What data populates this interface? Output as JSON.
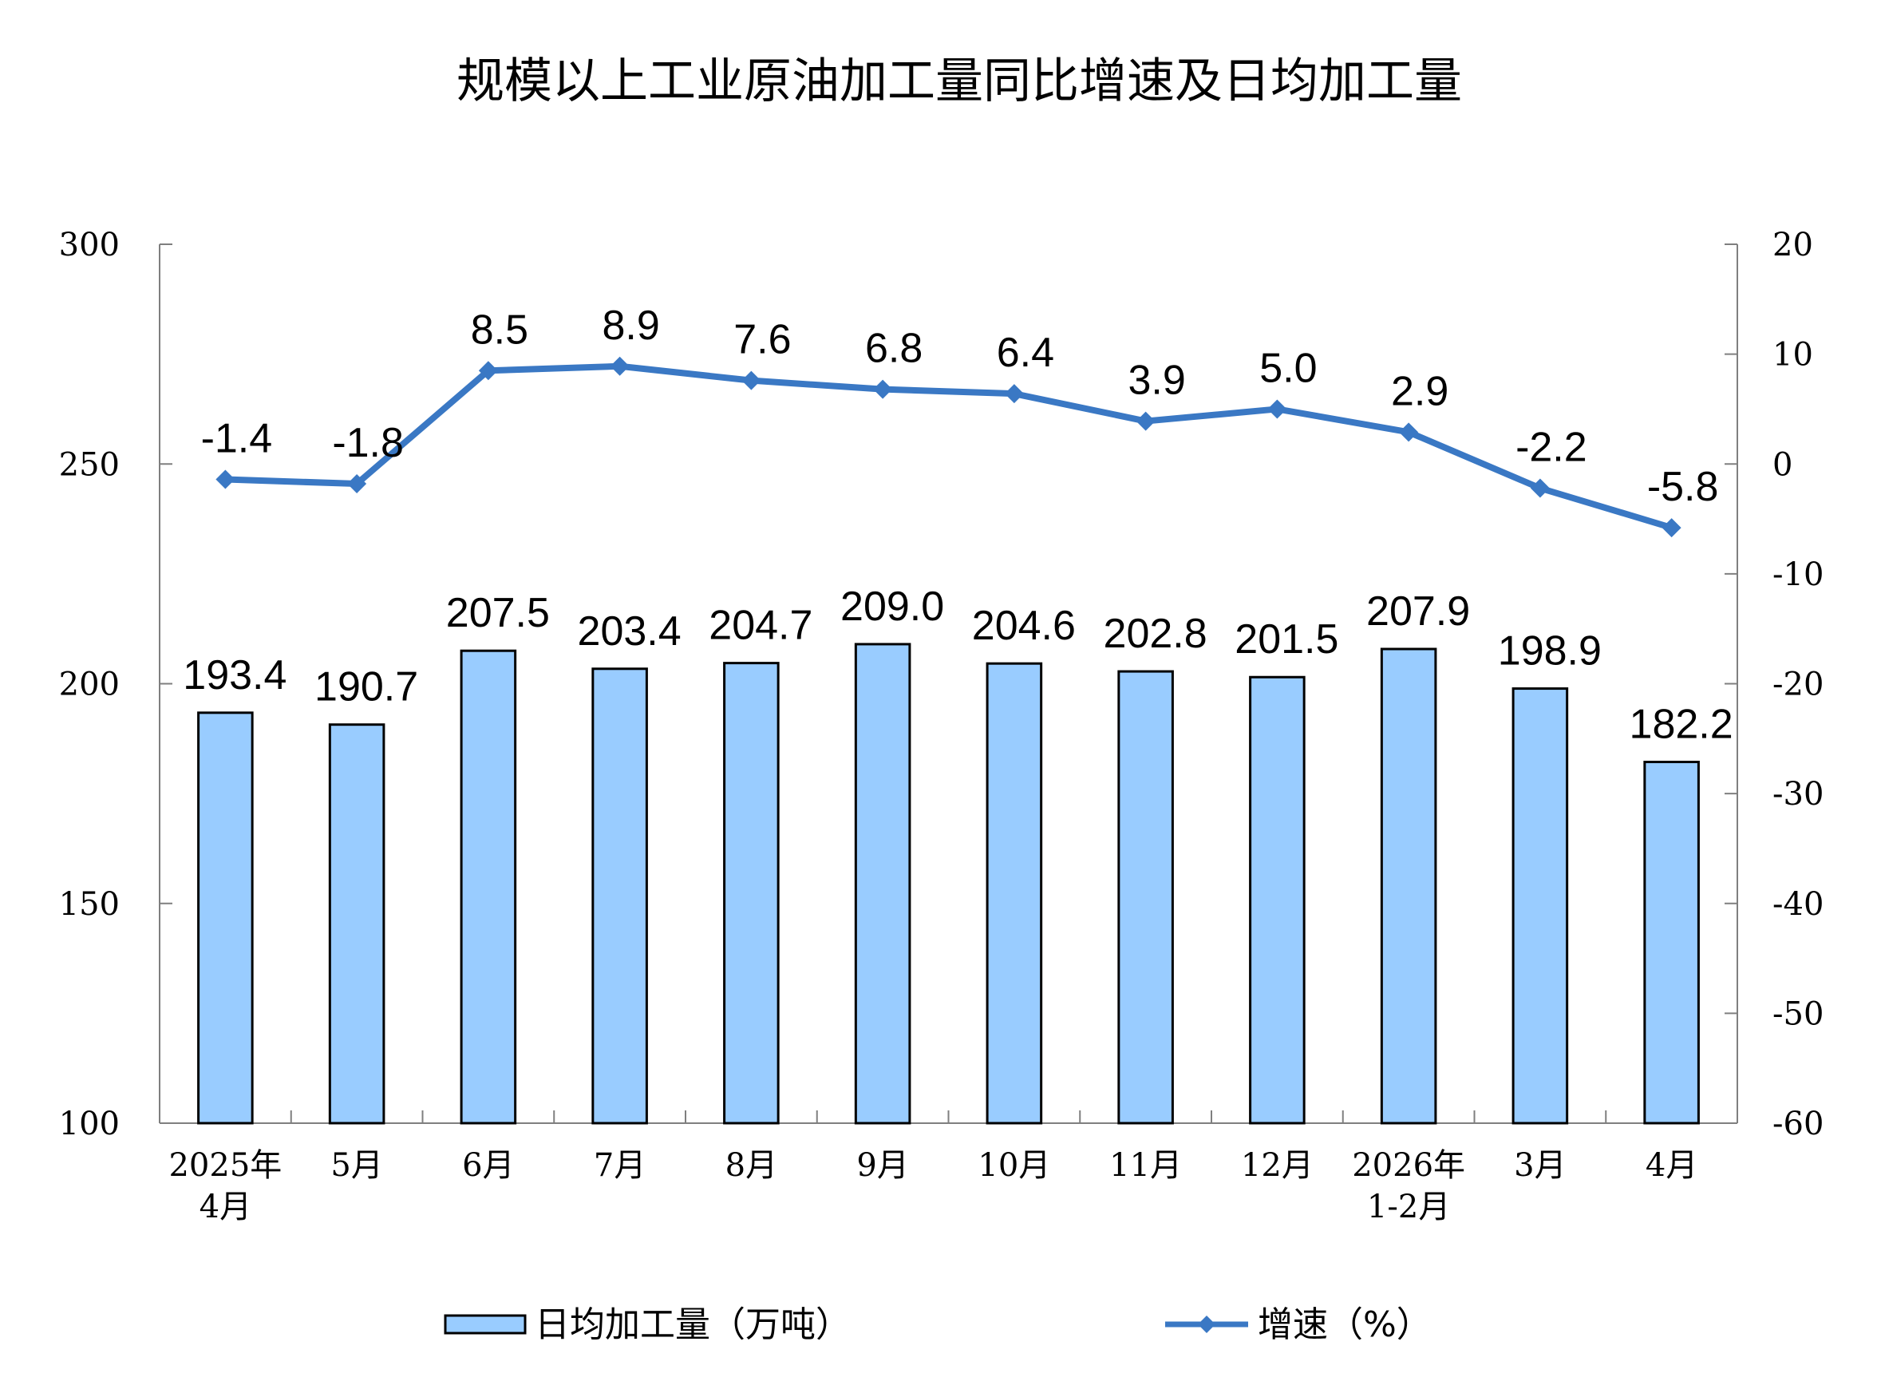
{
  "chart_data": {
    "type": "bar+line",
    "title": "规模以上工业原油加工量同比增速及日均加工量",
    "categories": [
      [
        "2025年",
        "4月"
      ],
      [
        "5月"
      ],
      [
        "6月"
      ],
      [
        "7月"
      ],
      [
        "8月"
      ],
      [
        "9月"
      ],
      [
        "10月"
      ],
      [
        "11月"
      ],
      [
        "12月"
      ],
      [
        "2026年",
        "1-2月"
      ],
      [
        "3月"
      ],
      [
        "4月"
      ]
    ],
    "series": [
      {
        "name": "日均加工量（万吨）",
        "type": "bar",
        "axis": "left",
        "color": "#99ccff",
        "values": [
          193.4,
          190.7,
          207.5,
          203.4,
          204.7,
          209.0,
          204.6,
          202.8,
          201.5,
          207.9,
          198.9,
          182.2
        ],
        "labels": [
          "193.4",
          "190.7",
          "207.5",
          "203.4",
          "204.7",
          "209.0",
          "204.6",
          "202.8",
          "201.5",
          "207.9",
          "198.9",
          "182.2"
        ]
      },
      {
        "name": "增速（%）",
        "type": "line",
        "axis": "right",
        "color": "#3a78c4",
        "values": [
          -1.4,
          -1.8,
          8.5,
          8.9,
          7.6,
          6.8,
          6.4,
          3.9,
          5.0,
          2.9,
          -2.2,
          -5.8
        ],
        "labels": [
          "-1.4",
          "-1.8",
          "8.5",
          "8.9",
          "7.6",
          "6.8",
          "6.4",
          "3.9",
          "5.0",
          "2.9",
          "-2.2",
          "-5.8"
        ]
      }
    ],
    "left_axis": {
      "ylim": [
        100,
        300
      ],
      "ticks": [
        "100",
        "150",
        "200",
        "250",
        "300"
      ]
    },
    "right_axis": {
      "ylim": [
        -60,
        20
      ],
      "ticks": [
        "-60",
        "-50",
        "-40",
        "-30",
        "-20",
        "-10",
        "0",
        "10",
        "20"
      ]
    },
    "legend_placement": "bottom",
    "grid": false
  }
}
